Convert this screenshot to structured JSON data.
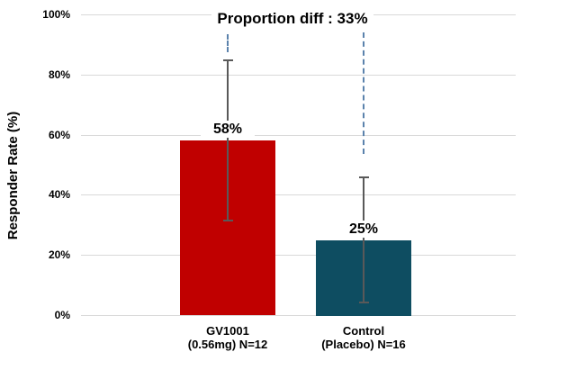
{
  "chart_data": {
    "type": "bar",
    "title": "Proportion diff : 33%",
    "ylabel": "Responder Rate (%)",
    "xlabel": "",
    "ylim": [
      0,
      100
    ],
    "yticks": [
      0,
      20,
      40,
      60,
      80,
      100
    ],
    "ytick_labels": [
      "0%",
      "20%",
      "40%",
      "60%",
      "80%",
      "100%"
    ],
    "grid": true,
    "legend_position": "none",
    "categories": [
      {
        "line1": "GV1001",
        "line2": "(0.56mg) N=12"
      },
      {
        "line1": "Control",
        "line2": "(Placebo) N=16"
      }
    ],
    "series": [
      {
        "name": "Responder Rate",
        "values": [
          58,
          25
        ],
        "value_labels": [
          "58%",
          "25%"
        ],
        "bar_colors": [
          "#c00000",
          "#0e4d61"
        ]
      }
    ],
    "error_bars": [
      {
        "low": 31,
        "high": 85
      },
      {
        "low": 4,
        "high": 46
      }
    ],
    "diff_reference_lines": [
      {
        "category_index": 0,
        "from_value": 87.5,
        "to_value": 93.5
      },
      {
        "category_index": 1,
        "from_value": 53.5,
        "to_value": 94
      }
    ],
    "colors": {
      "bar_gv1001": "#c00000",
      "bar_control": "#0e4d61",
      "gridline": "#d9d9d9",
      "error_bar": "#595959",
      "diff_line": "#5b82ac",
      "text": "#000000",
      "background": "#ffffff"
    }
  }
}
